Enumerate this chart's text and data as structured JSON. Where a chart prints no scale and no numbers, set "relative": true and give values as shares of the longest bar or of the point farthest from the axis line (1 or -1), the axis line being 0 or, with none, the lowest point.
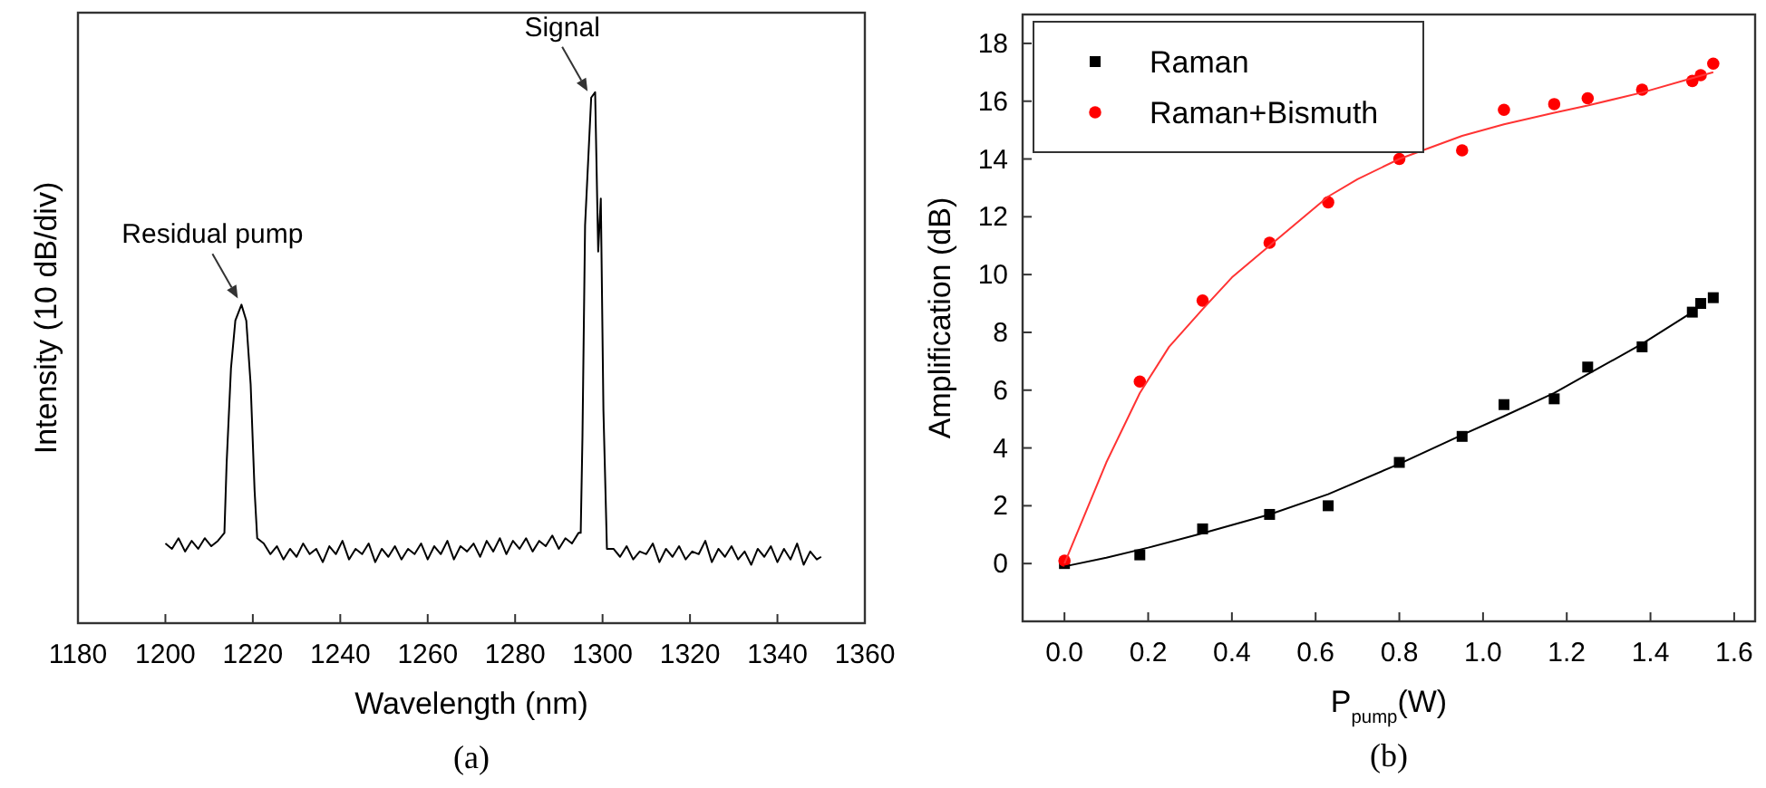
{
  "chart_data": [
    {
      "type": "line",
      "relative": true,
      "xlabel": "Wavelength (nm)",
      "ylabel": "Intensity (10 dB/div)",
      "xlim": [
        1180,
        1360
      ],
      "xticks": [
        1180,
        1200,
        1220,
        1240,
        1260,
        1280,
        1300,
        1320,
        1340,
        1360
      ],
      "grid": false,
      "legend": false,
      "marker": "none",
      "annotations": [
        {
          "text": "Residual pump",
          "x": 1217.4,
          "y": 0.6
        },
        {
          "text": "Signal",
          "x": 1297.4,
          "y": 0.99
        },
        "(a)"
      ],
      "series": [
        {
          "color": "#000000",
          "x": [
            1200,
            1201.5,
            1203,
            1204.5,
            1206,
            1207.5,
            1209,
            1210.5,
            1212,
            1213.5,
            1214,
            1215,
            1216,
            1217.4,
            1218.5,
            1219.5,
            1220.4,
            1221,
            1222.5,
            1224,
            1225.5,
            1227,
            1228.5,
            1230,
            1231.5,
            1233,
            1234.5,
            1236,
            1237.5,
            1239,
            1240.5,
            1242,
            1243.5,
            1245,
            1246.5,
            1248,
            1249.5,
            1251,
            1252.5,
            1254,
            1255.5,
            1257,
            1258.5,
            1260,
            1261.5,
            1263,
            1264.5,
            1266,
            1267.5,
            1269,
            1270.5,
            1272,
            1273.5,
            1275,
            1276.5,
            1278,
            1279.5,
            1281,
            1282.5,
            1284,
            1285.5,
            1287,
            1288.5,
            1290,
            1291.5,
            1293,
            1294.5,
            1295,
            1295.4,
            1296,
            1297.4,
            1298.3,
            1299,
            1299.6,
            1300.2,
            1301,
            1302.5,
            1304,
            1305.5,
            1307,
            1308.5,
            1310,
            1311.5,
            1313,
            1314.5,
            1316,
            1317.5,
            1319,
            1320.5,
            1322,
            1323.5,
            1325,
            1326.5,
            1328,
            1329.5,
            1331,
            1332.5,
            1334,
            1335.5,
            1337,
            1338.5,
            1340,
            1341.5,
            1343,
            1344.5,
            1346,
            1347.5,
            1349,
            1350
          ],
          "values": [
            0.15,
            0.14,
            0.16,
            0.135,
            0.155,
            0.14,
            0.16,
            0.145,
            0.155,
            0.17,
            0.3,
            0.48,
            0.57,
            0.6,
            0.57,
            0.45,
            0.25,
            0.16,
            0.15,
            0.13,
            0.145,
            0.12,
            0.14,
            0.125,
            0.15,
            0.13,
            0.14,
            0.115,
            0.145,
            0.13,
            0.155,
            0.12,
            0.14,
            0.13,
            0.15,
            0.115,
            0.14,
            0.125,
            0.145,
            0.12,
            0.14,
            0.13,
            0.15,
            0.12,
            0.145,
            0.13,
            0.155,
            0.12,
            0.145,
            0.135,
            0.15,
            0.125,
            0.155,
            0.135,
            0.16,
            0.13,
            0.155,
            0.14,
            0.16,
            0.135,
            0.155,
            0.145,
            0.165,
            0.14,
            0.16,
            0.15,
            0.17,
            0.17,
            0.35,
            0.75,
            0.99,
            1.0,
            0.7,
            0.8,
            0.4,
            0.14,
            0.14,
            0.125,
            0.145,
            0.12,
            0.135,
            0.13,
            0.15,
            0.115,
            0.14,
            0.125,
            0.145,
            0.12,
            0.135,
            0.13,
            0.155,
            0.115,
            0.14,
            0.125,
            0.145,
            0.12,
            0.135,
            0.11,
            0.14,
            0.125,
            0.145,
            0.115,
            0.14,
            0.12,
            0.15,
            0.11,
            0.135,
            0.12,
            0.125
          ]
        }
      ]
    },
    {
      "type": "scatter",
      "xlabel": "P$_{pump}$(W)",
      "ylabel": "Amplification (dB)",
      "xlim": [
        -0.1,
        1.65
      ],
      "xticks": [
        {
          "value": 0,
          "label": "0.0"
        },
        0.2,
        0.4,
        0.6,
        0.8,
        {
          "value": 1,
          "label": "1.0"
        },
        1.2,
        1.4,
        1.6
      ],
      "ylim": [
        -2,
        19
      ],
      "yticks": [
        0,
        2,
        4,
        6,
        8,
        10,
        12,
        14,
        16,
        18
      ],
      "grid": false,
      "legend": "top left",
      "annotations": [
        "(b)"
      ],
      "series": [
        {
          "name": "Raman",
          "color": "#000000",
          "marker": "square",
          "x": [
            0,
            0.18,
            0.33,
            0.49,
            0.63,
            0.8,
            0.95,
            1.05,
            1.17,
            1.25,
            1.38,
            1.5,
            1.52,
            1.55
          ],
          "values": [
            0,
            0.3,
            1.2,
            1.7,
            2.0,
            3.5,
            4.4,
            5.5,
            5.7,
            6.8,
            7.5,
            8.7,
            9.0,
            9.2
          ]
        },
        {
          "name": "Raman+Bismuth",
          "color": "#ff0000",
          "marker": "circle",
          "x": [
            0,
            0.18,
            0.33,
            0.49,
            0.63,
            0.8,
            0.95,
            1.05,
            1.17,
            1.25,
            1.38,
            1.5,
            1.52,
            1.55
          ],
          "values": [
            0.1,
            6.3,
            9.1,
            11.1,
            12.5,
            14.0,
            14.3,
            15.7,
            15.9,
            16.1,
            16.4,
            16.7,
            16.9,
            17.3
          ]
        },
        {
          "type": "line",
          "color": "#000000",
          "x": [
            0,
            0.1,
            0.2,
            0.33,
            0.49,
            0.63,
            0.8,
            0.95,
            1.05,
            1.17,
            1.25,
            1.38,
            1.5
          ],
          "values": [
            -0.1,
            0.2,
            0.55,
            1.05,
            1.7,
            2.4,
            3.45,
            4.45,
            5.1,
            5.9,
            6.55,
            7.6,
            8.7
          ]
        },
        {
          "type": "line",
          "color": "#ff3333",
          "x": [
            0,
            0.1,
            0.18,
            0.25,
            0.33,
            0.4,
            0.49,
            0.63,
            0.7,
            0.8,
            0.95,
            1.05,
            1.17,
            1.25,
            1.38,
            1.5,
            1.55
          ],
          "values": [
            0,
            3.5,
            5.9,
            7.5,
            8.8,
            9.9,
            11.0,
            12.7,
            13.3,
            14.0,
            14.8,
            15.2,
            15.6,
            15.85,
            16.3,
            16.8,
            17.0
          ]
        }
      ]
    }
  ]
}
